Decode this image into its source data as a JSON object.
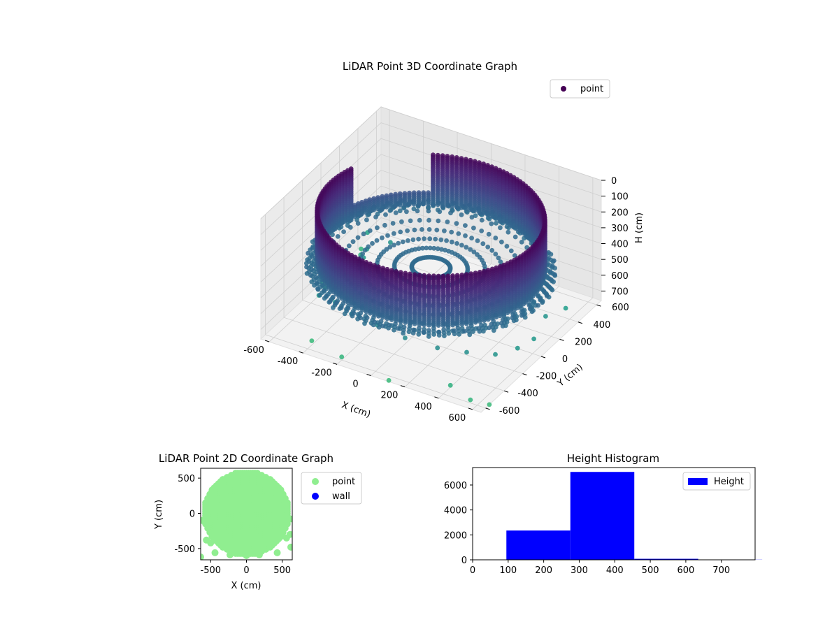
{
  "chart_data": [
    {
      "type": "scatter",
      "projection": "3d",
      "title": "LiDAR Point 3D Coordinate Graph",
      "xlabel": "X (cm)",
      "ylabel": "Y (cm)",
      "zlabel": "H (cm)",
      "x_ticks": [
        -600,
        -400,
        -200,
        0,
        200,
        400,
        600
      ],
      "y_ticks": [
        -600,
        -400,
        -200,
        0,
        200,
        400,
        600
      ],
      "z_ticks": [
        0,
        100,
        200,
        300,
        400,
        500,
        600,
        700
      ],
      "xlim": [
        -650,
        650
      ],
      "ylim": [
        -650,
        650
      ],
      "zlim": [
        760,
        0
      ],
      "z_inverted": true,
      "colormap": "viridis",
      "grid": true,
      "legend": {
        "position": "top-right",
        "entries": [
          {
            "label": "point",
            "color": "#440154"
          }
        ]
      },
      "series": [
        {
          "name": "point",
          "description": "dense ring (wall) of radius ~590 cm spanning heights ~100–450 cm, with sparse outlier points",
          "ring": {
            "radius": 590,
            "h_top": 100,
            "h_bottom": 450,
            "gap_angle_deg": [
              118,
              162
            ]
          },
          "outliers": [
            {
              "x": -620,
              "y": 380,
              "h": 740
            },
            {
              "x": -580,
              "y": 300,
              "h": 720
            },
            {
              "x": -640,
              "y": 200,
              "h": 760
            },
            {
              "x": -600,
              "y": 100,
              "h": 700
            },
            {
              "x": -630,
              "y": -20,
              "h": 740
            },
            {
              "x": -560,
              "y": -120,
              "h": 690
            },
            {
              "x": -610,
              "y": 430,
              "h": 660
            },
            {
              "x": -520,
              "y": 260,
              "h": 640
            },
            {
              "x": -480,
              "y": 150,
              "h": 620
            },
            {
              "x": -420,
              "y": 330,
              "h": 600
            },
            {
              "x": -520,
              "y": -260,
              "h": 650
            },
            {
              "x": -380,
              "y": -340,
              "h": 600
            },
            {
              "x": -240,
              "y": -420,
              "h": 580
            },
            {
              "x": -60,
              "y": -470,
              "h": 560
            },
            {
              "x": 120,
              "y": -500,
              "h": 560
            },
            {
              "x": 300,
              "y": -480,
              "h": 570
            },
            {
              "x": 440,
              "y": -420,
              "h": 580
            },
            {
              "x": 560,
              "y": -330,
              "h": 600
            },
            {
              "x": 620,
              "y": -200,
              "h": 610
            },
            {
              "x": 640,
              "y": -60,
              "h": 620
            },
            {
              "x": 600,
              "y": 140,
              "h": 600
            },
            {
              "x": 620,
              "y": 320,
              "h": 640
            },
            {
              "x": -300,
              "y": -160,
              "h": 520
            },
            {
              "x": 200,
              "y": -250,
              "h": 520
            },
            {
              "x": 420,
              "y": -560,
              "h": 720
            },
            {
              "x": 560,
              "y": -600,
              "h": 740
            },
            {
              "x": 100,
              "y": -640,
              "h": 760
            },
            {
              "x": 650,
              "y": -560,
              "h": 760
            },
            {
              "x": -200,
              "y": -600,
              "h": 740
            },
            {
              "x": -420,
              "y": -520,
              "h": 760
            }
          ]
        }
      ]
    },
    {
      "type": "scatter",
      "title": "LiDAR Point 2D Coordinate Graph",
      "xlabel": "X (cm)",
      "ylabel": "Y (cm)",
      "x_ticks": [
        -500,
        0,
        500
      ],
      "y_ticks": [
        500,
        0,
        -500
      ],
      "xlim": [
        -640,
        640
      ],
      "ylim": [
        -660,
        640
      ],
      "grid": false,
      "legend": {
        "position": "right-outside",
        "entries": [
          {
            "label": "point",
            "color": "#90ee90"
          },
          {
            "label": "wall",
            "color": "#0000ff"
          }
        ]
      },
      "series": [
        {
          "name": "point",
          "color": "#90ee90",
          "description": "filled disc of points, radius ~590 cm"
        },
        {
          "name": "wall",
          "color": "#0000ff",
          "description": "no points visible"
        }
      ]
    },
    {
      "type": "bar",
      "subtype": "histogram",
      "title": "Height Histogram",
      "x_ticks": [
        0,
        100,
        200,
        300,
        400,
        500,
        600,
        700
      ],
      "y_ticks": [
        0,
        2000,
        4000,
        6000
      ],
      "xlim": [
        0,
        795
      ],
      "ylim": [
        0,
        7400
      ],
      "legend": {
        "position": "top-right",
        "entries": [
          {
            "label": "Height",
            "color": "#0000ff"
          }
        ]
      },
      "bins": [
        {
          "from": 95,
          "to": 275,
          "count": 2350
        },
        {
          "from": 275,
          "to": 455,
          "count": 7050
        },
        {
          "from": 455,
          "to": 635,
          "count": 80
        },
        {
          "from": 635,
          "to": 815,
          "count": 10
        }
      ],
      "color": "#0000ff"
    }
  ]
}
